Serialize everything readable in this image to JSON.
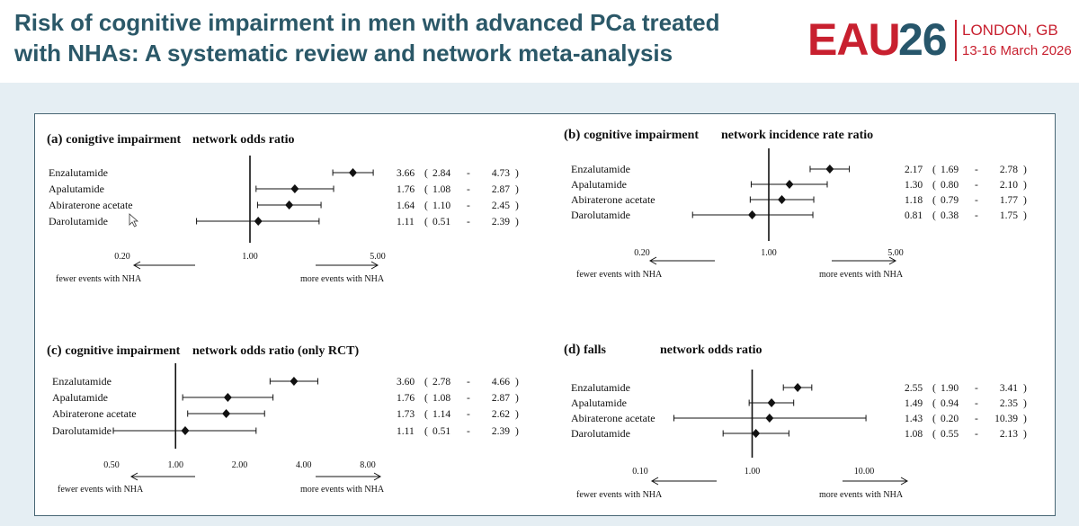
{
  "header": {
    "title_line1": "Risk of cognitive impairment in men with advanced PCa treated",
    "title_line2": "with NHAs: A systematic review and network meta-analysis"
  },
  "logo": {
    "word": "EAU",
    "number": "26",
    "city": "LONDON, GB",
    "dates": "13-16 March 2026",
    "red": "#c8202f",
    "blue": "#27566b"
  },
  "chart_data": [
    {
      "type": "forest",
      "letter": "(a)",
      "title": "conigtive impairment",
      "measure": "network odds ratio",
      "scale": "log",
      "ticks": [
        "0.20",
        "1.00",
        "5.00"
      ],
      "left_label": "fewer events with NHA",
      "right_label": "more events with NHA",
      "rows": [
        {
          "name": "Enzalutamide",
          "estimate": 3.66,
          "lower": 2.84,
          "upper": 4.73,
          "est_text": "3.66",
          "low_text": "2.84",
          "high_text": "4.73"
        },
        {
          "name": "Apalutamide",
          "estimate": 1.76,
          "lower": 1.08,
          "upper": 2.87,
          "est_text": "1.76",
          "low_text": "1.08",
          "high_text": "2.87"
        },
        {
          "name": "Abiraterone acetate",
          "estimate": 1.64,
          "lower": 1.1,
          "upper": 2.45,
          "est_text": "1.64",
          "low_text": "1.10",
          "high_text": "2.45"
        },
        {
          "name": "Darolutamide",
          "estimate": 1.11,
          "lower": 0.51,
          "upper": 2.39,
          "est_text": "1.11",
          "low_text": "0.51",
          "high_text": "2.39"
        }
      ]
    },
    {
      "type": "forest",
      "letter": "(b)",
      "title": "cognitive impairment",
      "measure": "network incidence rate ratio",
      "scale": "log",
      "ticks": [
        "0.20",
        "1.00",
        "5.00"
      ],
      "left_label": "fewer events with NHA",
      "right_label": "more events with NHA",
      "rows": [
        {
          "name": "Enzalutamide",
          "estimate": 2.17,
          "lower": 1.69,
          "upper": 2.78,
          "est_text": "2.17",
          "low_text": "1.69",
          "high_text": "2.78"
        },
        {
          "name": "Apalutamide",
          "estimate": 1.3,
          "lower": 0.8,
          "upper": 2.1,
          "est_text": "1.30",
          "low_text": "0.80",
          "high_text": "2.10"
        },
        {
          "name": "Abiraterone acetate",
          "estimate": 1.18,
          "lower": 0.79,
          "upper": 1.77,
          "est_text": "1.18",
          "low_text": "0.79",
          "high_text": "1.77"
        },
        {
          "name": "Darolutamide",
          "estimate": 0.81,
          "lower": 0.38,
          "upper": 1.75,
          "est_text": "0.81",
          "low_text": "0.38",
          "high_text": "1.75"
        }
      ]
    },
    {
      "type": "forest",
      "letter": "(c)",
      "title": "cognitive impairment",
      "measure": "network odds ratio (only RCT)",
      "scale": "log",
      "ticks": [
        "0.50",
        "1.00",
        "2.00",
        "4.00",
        "8.00"
      ],
      "left_label": "fewer events with NHA",
      "right_label": "more events with NHA",
      "rows": [
        {
          "name": "Enzalutamide",
          "estimate": 3.6,
          "lower": 2.78,
          "upper": 4.66,
          "est_text": "3.60",
          "low_text": "2.78",
          "high_text": "4.66"
        },
        {
          "name": "Apalutamide",
          "estimate": 1.76,
          "lower": 1.08,
          "upper": 2.87,
          "est_text": "1.76",
          "low_text": "1.08",
          "high_text": "2.87"
        },
        {
          "name": "Abiraterone acetate",
          "estimate": 1.73,
          "lower": 1.14,
          "upper": 2.62,
          "est_text": "1.73",
          "low_text": "1.14",
          "high_text": "2.62"
        },
        {
          "name": "Darolutamide",
          "estimate": 1.11,
          "lower": 0.51,
          "upper": 2.39,
          "est_text": "1.11",
          "low_text": "0.51",
          "high_text": "2.39"
        }
      ]
    },
    {
      "type": "forest",
      "letter": "(d)",
      "title": "falls",
      "measure": "network odds ratio",
      "scale": "log",
      "ticks": [
        "0.10",
        "1.00",
        "10.00"
      ],
      "left_label": "fewer events with NHA",
      "right_label": "more events with NHA",
      "rows": [
        {
          "name": "Enzalutamide",
          "estimate": 2.55,
          "lower": 1.9,
          "upper": 3.41,
          "est_text": "2.55",
          "low_text": "1.90",
          "high_text": "3.41"
        },
        {
          "name": "Apalutamide",
          "estimate": 1.49,
          "lower": 0.94,
          "upper": 2.35,
          "est_text": "1.49",
          "low_text": "0.94",
          "high_text": "2.35"
        },
        {
          "name": "Abiraterone acetate",
          "estimate": 1.43,
          "lower": 0.2,
          "upper": 10.39,
          "est_text": "1.43",
          "low_text": "0.20",
          "high_text": "10.39"
        },
        {
          "name": "Darolutamide",
          "estimate": 1.08,
          "lower": 0.55,
          "upper": 2.13,
          "est_text": "1.08",
          "low_text": "0.55",
          "high_text": "2.13"
        }
      ]
    }
  ]
}
